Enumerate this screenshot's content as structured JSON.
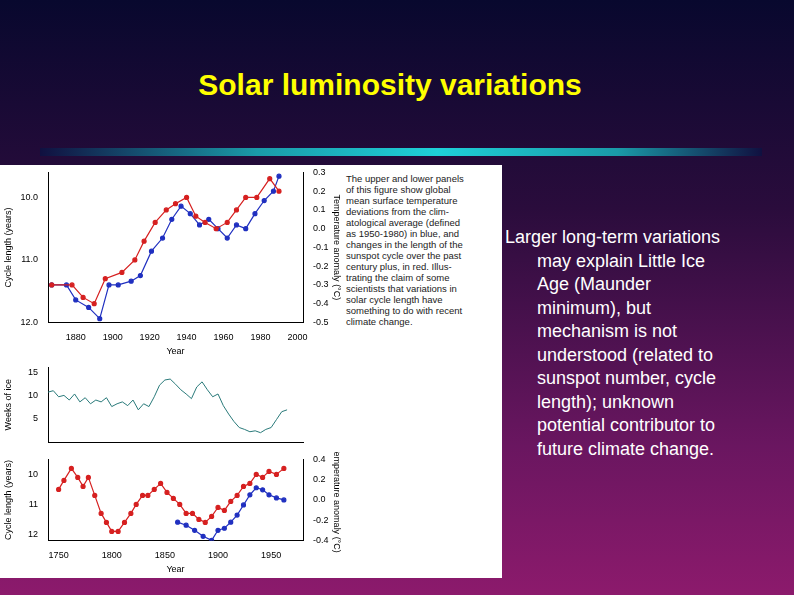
{
  "title": "Solar luminosity variations",
  "figure_caption_lines": [
    "The upper and lower panels",
    "of this figure show global",
    "mean surface temperature",
    "deviations from the clim-",
    "atological average (defined",
    "as 1950-1980) in blue, and",
    "changes in the length of the",
    "sunspot cycle over the past",
    "century plus, in red. Illus-",
    "trating the claim of some",
    "scientists that variations in",
    "solar cycle length have",
    "something to do with recent",
    "climate change."
  ],
  "text_lines": [
    "Larger long-term variations",
    "may explain Little Ice",
    "Age (Maunder",
    "minimum), but",
    "mechanism is not",
    "understood (related to",
    "sunspot number, cycle",
    "length); unknown",
    "potential contributor to",
    "future climate change."
  ],
  "chart_data": [
    {
      "type": "line",
      "xlabel": "Year",
      "ylabel": "Cycle length (years)",
      "y2label": "Temperature anomaly (°C)",
      "xlim": [
        1865,
        2003
      ],
      "xticks": [
        1880,
        1900,
        1920,
        1940,
        1960,
        1980,
        2000
      ],
      "ylim": [
        12,
        9.6
      ],
      "yticks": [
        {
          "value": 10,
          "label": "10.0"
        },
        {
          "value": 11,
          "label": "11.0"
        },
        {
          "value": 12,
          "label": "12.0"
        }
      ],
      "y2lim": [
        -0.5,
        0.3
      ],
      "y2ticks": [
        0.3,
        0.2,
        0.1,
        {
          "value": 0,
          "label": "0.0"
        },
        -0.1,
        -0.2,
        -0.3,
        -0.4,
        -0.5
      ],
      "series": [
        {
          "color": "#d62020",
          "marker": "circle",
          "line_style": "solid",
          "x": [
            1867,
            1878,
            1884,
            1890,
            1896,
            1905,
            1912,
            1917,
            1923,
            1929,
            1934,
            1940,
            1945,
            1950,
            1956,
            1962,
            1967,
            1972,
            1978,
            1985,
            1990
          ],
          "values": [
            11.4,
            11.4,
            11.6,
            11.7,
            11.3,
            11.2,
            11.0,
            10.7,
            10.4,
            10.2,
            10.1,
            10.0,
            10.3,
            10.4,
            10.5,
            10.4,
            10.2,
            10.0,
            10.0,
            9.7,
            9.9
          ]
        },
        {
          "color": "#2030c0",
          "marker": "circle",
          "line_style": "solid",
          "axis": "y2",
          "x": [
            1867,
            1875,
            1880,
            1887,
            1893,
            1898,
            1903,
            1910,
            1915,
            1921,
            1927,
            1932,
            1937,
            1942,
            1947,
            1952,
            1957,
            1962,
            1967,
            1972,
            1977,
            1982,
            1987,
            1990
          ],
          "values": [
            -0.3,
            -0.3,
            -0.38,
            -0.42,
            -0.48,
            -0.3,
            -0.3,
            -0.28,
            -0.25,
            -0.12,
            -0.05,
            0.05,
            0.12,
            0.08,
            0.02,
            0.05,
            0.0,
            -0.05,
            0.02,
            0.0,
            0.08,
            0.15,
            0.2,
            0.28
          ]
        }
      ]
    },
    {
      "type": "line",
      "ylabel": "Weeks of ice",
      "tick_labels": "y",
      "xlim": [
        1740,
        1980
      ],
      "ylim": [
        0,
        16
      ],
      "yticks": [
        5,
        10,
        15
      ],
      "series": [
        {
          "color": "#2a7a7a",
          "marker": "none",
          "line_style": "solid",
          "x": [
            1740,
            1745,
            1750,
            1755,
            1760,
            1765,
            1770,
            1775,
            1780,
            1785,
            1790,
            1795,
            1800,
            1805,
            1810,
            1815,
            1820,
            1825,
            1830,
            1835,
            1840,
            1845,
            1850,
            1855,
            1860,
            1865,
            1870,
            1875,
            1880,
            1885,
            1890,
            1895,
            1900,
            1905,
            1910,
            1915,
            1920,
            1925,
            1930,
            1935,
            1940,
            1945,
            1950,
            1955,
            1960,
            1965
          ],
          "values": [
            10.7,
            11,
            9.7,
            10,
            9,
            10.3,
            8.6,
            9.5,
            8.2,
            9,
            8.6,
            9.5,
            7.6,
            8.2,
            8.6,
            7.8,
            9,
            6.9,
            8.2,
            7.6,
            9.7,
            12.2,
            13.3,
            13.5,
            12.4,
            11.2,
            10.3,
            9.3,
            11.8,
            12.9,
            11.2,
            9.7,
            10.3,
            7.8,
            6,
            4.4,
            3.1,
            2.7,
            2.2,
            2.4,
            2,
            2.7,
            3.1,
            4.8,
            6.5,
            6.9
          ]
        }
      ]
    },
    {
      "type": "line",
      "xlabel": "Year",
      "ylabel": "Cycle length (years)",
      "y2label": "Temperature anomaly (°C)",
      "xlim": [
        1740,
        1980
      ],
      "xticks": [
        1750,
        1800,
        1850,
        1900,
        1950
      ],
      "ylim": [
        12.2,
        9.5
      ],
      "yticks": [
        10,
        11,
        12
      ],
      "y2lim": [
        -0.4,
        0.4
      ],
      "y2ticks": [
        0.4,
        0.2,
        {
          "value": 0,
          "label": "0.0"
        },
        -0.2,
        -0.4
      ],
      "series": [
        {
          "color": "#d62020",
          "marker": "circle",
          "line_style": "solid",
          "x": [
            1750,
            1755,
            1762,
            1768,
            1773,
            1778,
            1784,
            1790,
            1795,
            1800,
            1806,
            1812,
            1818,
            1823,
            1829,
            1834,
            1840,
            1846,
            1852,
            1858,
            1864,
            1870,
            1876,
            1882,
            1888,
            1894,
            1900,
            1906,
            1912,
            1918,
            1924,
            1930,
            1936,
            1942,
            1948,
            1955,
            1962
          ],
          "values": [
            10.5,
            10.2,
            9.8,
            10.1,
            10.4,
            10.1,
            10.7,
            11.3,
            11.6,
            11.9,
            11.9,
            11.6,
            11.3,
            11.0,
            10.7,
            10.7,
            10.5,
            10.3,
            10.6,
            10.8,
            11.0,
            11.3,
            11.3,
            11.5,
            11.6,
            11.4,
            11.1,
            11.2,
            10.9,
            10.7,
            10.4,
            10.3,
            10.0,
            10.1,
            9.9,
            10.0,
            9.8
          ]
        },
        {
          "color": "#2030c0",
          "marker": "circle",
          "line_style": "solid",
          "axis": "y2",
          "x": [
            1862,
            1870,
            1878,
            1886,
            1894,
            1900,
            1906,
            1912,
            1918,
            1924,
            1930,
            1936,
            1942,
            1948,
            1955,
            1962
          ],
          "values": [
            -0.22,
            -0.25,
            -0.3,
            -0.36,
            -0.4,
            -0.3,
            -0.28,
            -0.22,
            -0.15,
            -0.05,
            0.05,
            0.12,
            0.1,
            0.05,
            0.02,
            0.0
          ]
        }
      ]
    }
  ]
}
